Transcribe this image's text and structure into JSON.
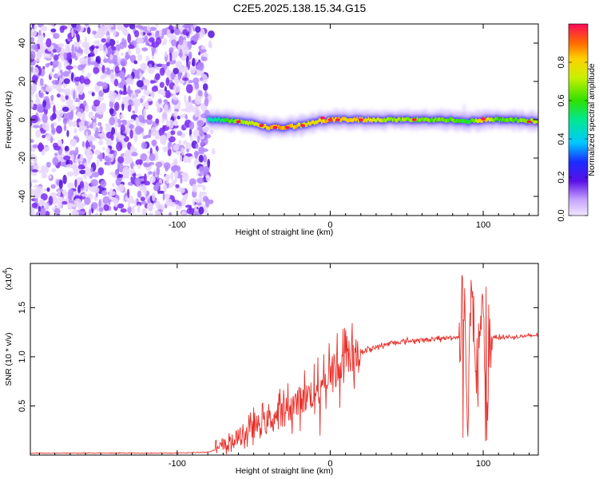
{
  "title": "C2E5.2025.138.15.34.G15",
  "chart_data": [
    {
      "type": "heatmap",
      "xlabel": "Height of straight line (km)",
      "ylabel": "Frequency (Hz)",
      "xlim": [
        -196,
        136
      ],
      "ylim": [
        -50,
        50
      ],
      "xticks": [
        -100,
        0,
        100
      ],
      "yticks": [
        -40,
        -20,
        0,
        20,
        40
      ],
      "noise_region_x": [
        -196,
        -80
      ],
      "ridge": {
        "x": [
          -80,
          -70,
          -60,
          -50,
          -40,
          -30,
          -20,
          -10,
          0,
          10,
          20,
          40,
          60,
          80,
          90,
          100,
          110,
          120,
          136
        ],
        "freq": [
          0,
          0,
          -1,
          -2,
          -4,
          -4,
          -3,
          -1,
          0,
          0,
          0,
          0,
          0,
          0,
          -1,
          0,
          0,
          0,
          -1
        ],
        "amplitude": [
          0.2,
          0.35,
          0.55,
          0.7,
          0.85,
          0.9,
          0.8,
          0.75,
          0.9,
          0.8,
          0.85,
          0.6,
          0.55,
          0.5,
          0.35,
          0.9,
          0.5,
          0.5,
          0.7
        ]
      },
      "colorbar": {
        "label": "Normalized spectral amplitude",
        "range": [
          0,
          1
        ],
        "ticks": [
          "0.0",
          "0.2",
          "0.4",
          "0.6",
          "0.8"
        ]
      }
    },
    {
      "type": "line",
      "xlabel": "Height of straight line (km)",
      "ylabel": "SNR (10 * v/v)",
      "y_multiplier": "(x10",
      "y_multiplier_exp": "4",
      "xlim": [
        -196,
        136
      ],
      "ylim": [
        0,
        1.95
      ],
      "xticks": [
        -100,
        0,
        100
      ],
      "yticks": [
        "0.5",
        "1.0",
        "1.5"
      ],
      "series": [
        {
          "color": "#e8302a",
          "x": [
            -196,
            -150,
            -100,
            -80,
            -70,
            -65,
            -60,
            -55,
            -50,
            -40,
            -30,
            -20,
            -10,
            -5,
            0,
            5,
            10,
            15,
            20,
            30,
            40,
            50,
            60,
            70,
            80,
            85,
            88,
            90,
            92,
            95,
            100,
            102,
            105,
            110,
            120,
            136
          ],
          "y": [
            0.02,
            0.02,
            0.02,
            0.03,
            0.08,
            0.12,
            0.18,
            0.22,
            0.28,
            0.35,
            0.45,
            0.55,
            0.65,
            0.72,
            0.8,
            0.9,
            0.95,
            1.0,
            1.05,
            1.1,
            1.14,
            1.16,
            1.17,
            1.18,
            1.2,
            1.2,
            1.6,
            0.2,
            1.9,
            0.8,
            1.5,
            0.2,
            1.2,
            1.2,
            1.2,
            1.22
          ]
        }
      ]
    }
  ]
}
